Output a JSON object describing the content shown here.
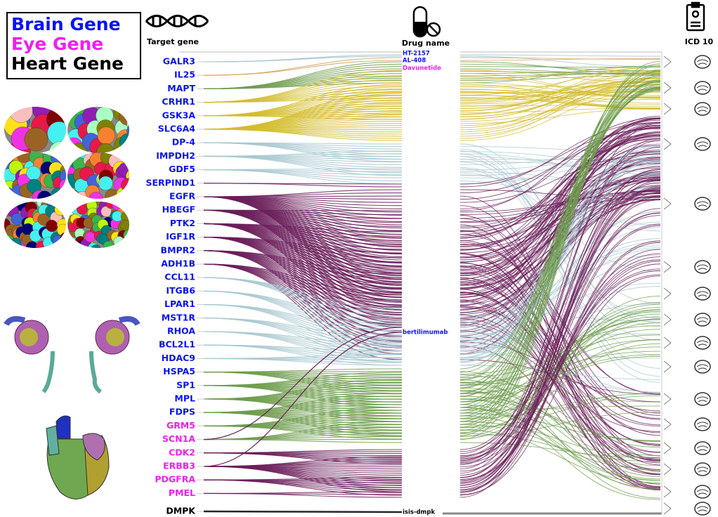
{
  "legend": [
    {
      "label": "Brain Gene",
      "color": "#0a14f0"
    },
    {
      "label": "Eye Gene",
      "color": "#f01ef0"
    },
    {
      "label": "Heart Gene",
      "color": "#000000"
    }
  ],
  "headers": {
    "target": "Target gene",
    "drug": "Drug name",
    "icd": "ICD 10"
  },
  "genes": [
    {
      "name": "GALR3",
      "group": 0,
      "color": "#9fbfc8"
    },
    {
      "name": "IL25",
      "group": 0,
      "color": "#d6a060"
    },
    {
      "name": "MAPT",
      "group": 0,
      "color": "#6e9e4e"
    },
    {
      "name": "CRHR1",
      "group": 0,
      "color": "#d4bd2e"
    },
    {
      "name": "GSK3A",
      "group": 0,
      "color": "#d4bd2e"
    },
    {
      "name": "SLC6A4",
      "group": 0,
      "color": "#d4bd2e"
    },
    {
      "name": "DP-4",
      "group": 0,
      "color": "#a8c8d0"
    },
    {
      "name": "IMPDH2",
      "group": 0,
      "color": "#a8c8d0"
    },
    {
      "name": "GDF5",
      "group": 0,
      "color": "#a8c8d0"
    },
    {
      "name": "SERPIND1",
      "group": 0,
      "color": "#6b1f5a"
    },
    {
      "name": "EGFR",
      "group": 0,
      "color": "#6b1f5a"
    },
    {
      "name": "HBEGF",
      "group": 0,
      "color": "#6b1f5a"
    },
    {
      "name": "PTK2",
      "group": 0,
      "color": "#6b1f5a"
    },
    {
      "name": "IGF1R",
      "group": 0,
      "color": "#6b1f5a"
    },
    {
      "name": "BMPR2",
      "group": 0,
      "color": "#6b1f5a"
    },
    {
      "name": "ADH1B",
      "group": 0,
      "color": "#6b1f5a"
    },
    {
      "name": "CCL11",
      "group": 0,
      "color": "#a8c8d0"
    },
    {
      "name": "ITGB6",
      "group": 0,
      "color": "#a8c8d0"
    },
    {
      "name": "LPAR1",
      "group": 0,
      "color": "#a8c8d0"
    },
    {
      "name": "MST1R",
      "group": 0,
      "color": "#a8c8d0"
    },
    {
      "name": "RHOA",
      "group": 0,
      "color": "#a8c8d0"
    },
    {
      "name": "BCL2L1",
      "group": 0,
      "color": "#a8c8d0"
    },
    {
      "name": "HDAC9",
      "group": 0,
      "color": "#a8c8d0"
    },
    {
      "name": "HSPA5",
      "group": 0,
      "color": "#6e9e4e"
    },
    {
      "name": "SP1",
      "group": 0,
      "color": "#6e9e4e"
    },
    {
      "name": "MPL",
      "group": 0,
      "color": "#6e9e4e"
    },
    {
      "name": "FDPS",
      "group": 0,
      "color": "#6e9e4e"
    },
    {
      "name": "GRM5",
      "group": 1,
      "color": "#6e9e4e"
    },
    {
      "name": "SCN1A",
      "group": 1,
      "color": "#6e9e4e"
    },
    {
      "name": "CDK2",
      "group": 1,
      "color": "#6b1f5a"
    },
    {
      "name": "ERBB3",
      "group": 1,
      "color": "#6b1f5a"
    },
    {
      "name": "PDGFRA",
      "group": 1,
      "color": "#6b1f5a"
    },
    {
      "name": "PMEL",
      "group": 1,
      "color": "#6b1f5a"
    },
    {
      "name": "DMPK",
      "group": 2,
      "color": "#000000"
    }
  ],
  "drugs": [
    {
      "name": "HT-2157",
      "group": 0
    },
    {
      "name": "AL-408",
      "group": 0
    },
    {
      "name": "Davunetide",
      "group": 1
    },
    {
      "name": "bertilimumab",
      "group": 0
    },
    {
      "name": "isis-dmpk",
      "group": 2
    }
  ]
}
